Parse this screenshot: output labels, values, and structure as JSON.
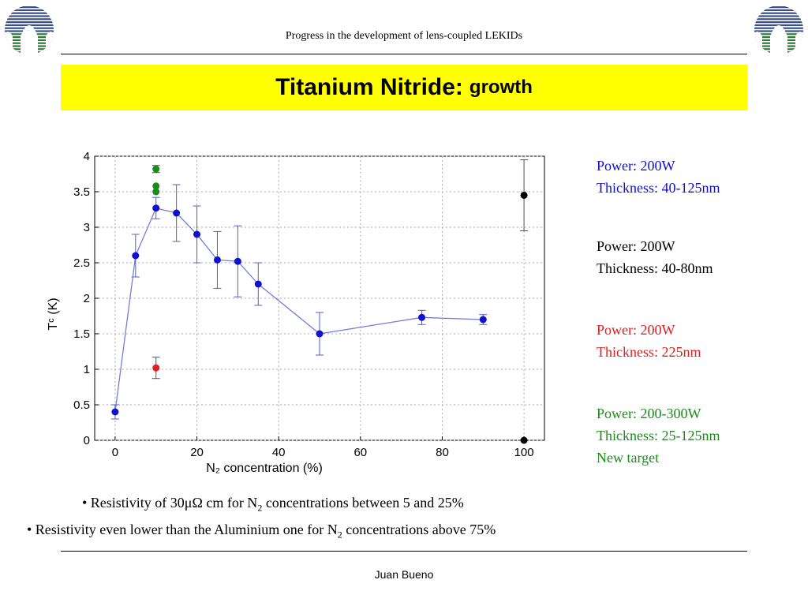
{
  "header": {
    "title": "Progress in the development of lens-coupled LEKIDs"
  },
  "slide": {
    "title_main": "Titanium Nitride:",
    "title_sub": "growth"
  },
  "chart_data": {
    "type": "scatter",
    "xlabel": "N₂ concentration (%)",
    "ylabel": "Tᶜ (K)",
    "xlim": [
      -5,
      105
    ],
    "ylim": [
      0,
      4
    ],
    "x_ticks": [
      0,
      20,
      40,
      60,
      80,
      100
    ],
    "y_ticks": [
      0,
      0.5,
      1,
      1.5,
      2,
      2.5,
      3,
      3.5,
      4
    ],
    "y_tick_labels": [
      "0",
      "0.5",
      "1",
      "1.5",
      "2",
      "2.5",
      "3",
      "3.5",
      "4"
    ],
    "grid": true,
    "series": [
      {
        "color": "#1010d0",
        "line": true,
        "points": [
          {
            "x": 0,
            "y": 0.4,
            "err": 0.1
          },
          {
            "x": 5,
            "y": 2.6,
            "err": 0.3
          },
          {
            "x": 10,
            "y": 3.27,
            "err": 0.15
          },
          {
            "x": 15,
            "y": 3.2,
            "err": 0.4
          },
          {
            "x": 20,
            "y": 2.9,
            "err": 0.4
          },
          {
            "x": 25,
            "y": 2.54,
            "err": 0.4
          },
          {
            "x": 30,
            "y": 2.52,
            "err": 0.5
          },
          {
            "x": 35,
            "y": 2.2,
            "err": 0.3
          },
          {
            "x": 50,
            "y": 1.5,
            "err": 0.3
          },
          {
            "x": 75,
            "y": 1.73,
            "err": 0.1
          },
          {
            "x": 90,
            "y": 1.7,
            "err": 0.07
          }
        ]
      },
      {
        "color": "#000000",
        "line": false,
        "points": [
          {
            "x": 100,
            "y": 3.45,
            "err": 0.5
          },
          {
            "x": 100,
            "y": 0.0,
            "err": 0
          }
        ]
      },
      {
        "color": "#e02020",
        "line": false,
        "points": [
          {
            "x": 10,
            "y": 1.02,
            "err": 0.15
          }
        ]
      },
      {
        "color": "#1a8c1a",
        "line": false,
        "points": [
          {
            "x": 10,
            "y": 3.82,
            "err": 0.05
          },
          {
            "x": 10,
            "y": 3.58,
            "err": 0
          },
          {
            "x": 10,
            "y": 3.5,
            "err": 0
          }
        ]
      }
    ]
  },
  "legend": [
    {
      "color": "#1010d0",
      "line1": "Power: 200W",
      "line2": "Thickness: 40-125nm"
    },
    {
      "color": "#000000",
      "line1": "Power: 200W",
      "line2": "Thickness: 40-80nm"
    },
    {
      "color": "#e02020",
      "line1": "Power: 200W",
      "line2": "Thickness: 225nm"
    },
    {
      "color": "#1a8c1a",
      "line1": "Power: 200-300W",
      "line2": "Thickness: 25-125nm",
      "line3": "New target"
    }
  ],
  "bullets": {
    "b1_pre": "• Resistivity of 30μΩ cm for N",
    "b1_sub": "2",
    "b1_post": " concentrations between 5 and 25%",
    "b2_pre": "• Resistivity even lower than the Aluminium one for N",
    "b2_sub": "2",
    "b2_post": " concentrations above 75%"
  },
  "footer": {
    "author": "Juan Bueno"
  },
  "colors": {
    "title_bg": "#ffff00",
    "logo_blue": "#3a4f8a",
    "logo_green": "#2f7a3a"
  }
}
